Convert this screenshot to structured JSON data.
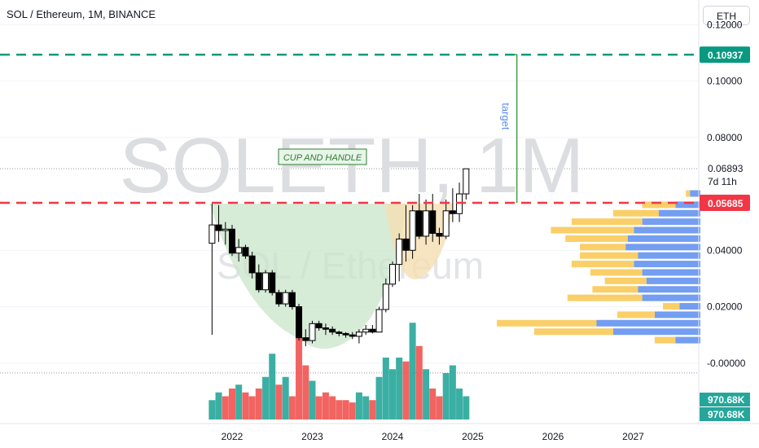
{
  "header": {
    "title": "SOL / Ethereum, 1M, BINANCE",
    "currency": "ETH"
  },
  "watermark": {
    "main": "SOLETH, 1M",
    "sub": "SOL / Ethereum"
  },
  "chart_data": {
    "type": "candlestick",
    "interval": "1M",
    "exchange": "BINANCE",
    "ylim": [
      -0.007,
      0.125
    ],
    "y_ticks": [
      "0.12000",
      "0.10000",
      "0.08000",
      "0.04000",
      "0.02000",
      "-0.00000"
    ],
    "x_ticks": [
      "2022",
      "2023",
      "2024",
      "2025",
      "2026",
      "2027"
    ],
    "price_labels": {
      "target_level": "0.10937",
      "support_level": "0.05685",
      "last_price": "0.06893",
      "countdown": "7d 11h",
      "volume_a": "970.68K",
      "volume_b": "970.68K"
    },
    "annotations": {
      "pattern": "CUP AND HANDLE",
      "target": "target"
    },
    "levels": {
      "target": 0.10937,
      "support": 0.05685,
      "last": 0.06893
    },
    "colors": {
      "up": "#26a69a",
      "down": "#ef5350",
      "target_line": "#089981",
      "support_line": "#f23645",
      "cup_fill": "#c8e6c9",
      "handle_fill": "#f5deb3",
      "vp_up": "#5b8def",
      "vp_down": "#f9c74f"
    },
    "candles": [
      {
        "t": 2021.75,
        "o": 0.0425,
        "h": 0.0565,
        "l": 0.01,
        "c": 0.049
      },
      {
        "t": 2021.833,
        "o": 0.049,
        "h": 0.056,
        "l": 0.043,
        "c": 0.047
      },
      {
        "t": 2021.917,
        "o": 0.047,
        "h": 0.05,
        "l": 0.042,
        "c": 0.0475
      },
      {
        "t": 2022.0,
        "o": 0.0475,
        "h": 0.049,
        "l": 0.038,
        "c": 0.039
      },
      {
        "t": 2022.083,
        "o": 0.039,
        "h": 0.044,
        "l": 0.036,
        "c": 0.041
      },
      {
        "t": 2022.167,
        "o": 0.041,
        "h": 0.042,
        "l": 0.037,
        "c": 0.038
      },
      {
        "t": 2022.25,
        "o": 0.038,
        "h": 0.0395,
        "l": 0.03,
        "c": 0.032
      },
      {
        "t": 2022.333,
        "o": 0.032,
        "h": 0.035,
        "l": 0.025,
        "c": 0.026
      },
      {
        "t": 2022.417,
        "o": 0.026,
        "h": 0.033,
        "l": 0.025,
        "c": 0.032
      },
      {
        "t": 2022.5,
        "o": 0.032,
        "h": 0.033,
        "l": 0.024,
        "c": 0.025
      },
      {
        "t": 2022.583,
        "o": 0.025,
        "h": 0.026,
        "l": 0.02,
        "c": 0.021
      },
      {
        "t": 2022.667,
        "o": 0.021,
        "h": 0.026,
        "l": 0.02,
        "c": 0.025
      },
      {
        "t": 2022.75,
        "o": 0.025,
        "h": 0.026,
        "l": 0.019,
        "c": 0.02
      },
      {
        "t": 2022.833,
        "o": 0.02,
        "h": 0.021,
        "l": 0.008,
        "c": 0.009
      },
      {
        "t": 2022.917,
        "o": 0.009,
        "h": 0.012,
        "l": 0.006,
        "c": 0.008
      },
      {
        "t": 2023.0,
        "o": 0.008,
        "h": 0.015,
        "l": 0.007,
        "c": 0.014
      },
      {
        "t": 2023.083,
        "o": 0.014,
        "h": 0.015,
        "l": 0.0115,
        "c": 0.0125
      },
      {
        "t": 2023.167,
        "o": 0.0125,
        "h": 0.014,
        "l": 0.01,
        "c": 0.012
      },
      {
        "t": 2023.25,
        "o": 0.012,
        "h": 0.013,
        "l": 0.01,
        "c": 0.011
      },
      {
        "t": 2023.333,
        "o": 0.011,
        "h": 0.0115,
        "l": 0.0095,
        "c": 0.0105
      },
      {
        "t": 2023.417,
        "o": 0.0105,
        "h": 0.011,
        "l": 0.009,
        "c": 0.01
      },
      {
        "t": 2023.5,
        "o": 0.01,
        "h": 0.011,
        "l": 0.0085,
        "c": 0.0095
      },
      {
        "t": 2023.583,
        "o": 0.0095,
        "h": 0.012,
        "l": 0.007,
        "c": 0.011
      },
      {
        "t": 2023.667,
        "o": 0.011,
        "h": 0.0135,
        "l": 0.01,
        "c": 0.012
      },
      {
        "t": 2023.75,
        "o": 0.012,
        "h": 0.0135,
        "l": 0.0105,
        "c": 0.011
      },
      {
        "t": 2023.833,
        "o": 0.011,
        "h": 0.02,
        "l": 0.011,
        "c": 0.019
      },
      {
        "t": 2023.917,
        "o": 0.019,
        "h": 0.03,
        "l": 0.018,
        "c": 0.028
      },
      {
        "t": 2024.0,
        "o": 0.028,
        "h": 0.036,
        "l": 0.027,
        "c": 0.035
      },
      {
        "t": 2024.083,
        "o": 0.035,
        "h": 0.046,
        "l": 0.029,
        "c": 0.044
      },
      {
        "t": 2024.167,
        "o": 0.044,
        "h": 0.056,
        "l": 0.036,
        "c": 0.04
      },
      {
        "t": 2024.25,
        "o": 0.04,
        "h": 0.056,
        "l": 0.037,
        "c": 0.054
      },
      {
        "t": 2024.333,
        "o": 0.054,
        "h": 0.06,
        "l": 0.044,
        "c": 0.045
      },
      {
        "t": 2024.417,
        "o": 0.045,
        "h": 0.058,
        "l": 0.042,
        "c": 0.054
      },
      {
        "t": 2024.5,
        "o": 0.054,
        "h": 0.06,
        "l": 0.043,
        "c": 0.046
      },
      {
        "t": 2024.583,
        "o": 0.046,
        "h": 0.048,
        "l": 0.042,
        "c": 0.045
      },
      {
        "t": 2024.667,
        "o": 0.045,
        "h": 0.058,
        "l": 0.044,
        "c": 0.054
      },
      {
        "t": 2024.75,
        "o": 0.054,
        "h": 0.062,
        "l": 0.05,
        "c": 0.053
      },
      {
        "t": 2024.833,
        "o": 0.053,
        "h": 0.064,
        "l": 0.05,
        "c": 0.06
      },
      {
        "t": 2024.917,
        "o": 0.06,
        "h": 0.0689,
        "l": 0.058,
        "c": 0.0689
      }
    ],
    "volume": [
      {
        "t": 2021.75,
        "v": 0.25,
        "up": true
      },
      {
        "t": 2021.833,
        "v": 0.35,
        "up": true
      },
      {
        "t": 2021.917,
        "v": 0.3,
        "up": false
      },
      {
        "t": 2022.0,
        "v": 0.4,
        "up": false
      },
      {
        "t": 2022.083,
        "v": 0.45,
        "up": true
      },
      {
        "t": 2022.167,
        "v": 0.35,
        "up": false
      },
      {
        "t": 2022.25,
        "v": 0.3,
        "up": false
      },
      {
        "t": 2022.333,
        "v": 0.4,
        "up": false
      },
      {
        "t": 2022.417,
        "v": 0.55,
        "up": true
      },
      {
        "t": 2022.5,
        "v": 0.85,
        "up": true
      },
      {
        "t": 2022.583,
        "v": 0.45,
        "up": false
      },
      {
        "t": 2022.667,
        "v": 0.55,
        "up": true
      },
      {
        "t": 2022.75,
        "v": 0.3,
        "up": false
      },
      {
        "t": 2022.833,
        "v": 1.2,
        "up": false
      },
      {
        "t": 2022.917,
        "v": 0.7,
        "up": false
      },
      {
        "t": 2023.0,
        "v": 0.5,
        "up": true
      },
      {
        "t": 2023.083,
        "v": 0.3,
        "up": false
      },
      {
        "t": 2023.167,
        "v": 0.35,
        "up": false
      },
      {
        "t": 2023.25,
        "v": 0.3,
        "up": false
      },
      {
        "t": 2023.333,
        "v": 0.25,
        "up": false
      },
      {
        "t": 2023.417,
        "v": 0.25,
        "up": false
      },
      {
        "t": 2023.5,
        "v": 0.22,
        "up": false
      },
      {
        "t": 2023.583,
        "v": 0.35,
        "up": true
      },
      {
        "t": 2023.667,
        "v": 0.3,
        "up": true
      },
      {
        "t": 2023.75,
        "v": 0.25,
        "up": false
      },
      {
        "t": 2023.833,
        "v": 0.55,
        "up": true
      },
      {
        "t": 2023.917,
        "v": 0.8,
        "up": true
      },
      {
        "t": 2024.0,
        "v": 0.65,
        "up": true
      },
      {
        "t": 2024.083,
        "v": 0.8,
        "up": true
      },
      {
        "t": 2024.167,
        "v": 0.75,
        "up": false
      },
      {
        "t": 2024.25,
        "v": 1.25,
        "up": true
      },
      {
        "t": 2024.333,
        "v": 0.95,
        "up": false
      },
      {
        "t": 2024.417,
        "v": 0.65,
        "up": true
      },
      {
        "t": 2024.5,
        "v": 0.4,
        "up": false
      },
      {
        "t": 2024.583,
        "v": 0.3,
        "up": false
      },
      {
        "t": 2024.667,
        "v": 0.6,
        "up": true
      },
      {
        "t": 2024.75,
        "v": 0.7,
        "up": true
      },
      {
        "t": 2024.833,
        "v": 0.4,
        "up": true
      },
      {
        "t": 2024.917,
        "v": 0.3,
        "up": true
      }
    ],
    "volume_profile": [
      {
        "y": 0.06,
        "buy": 0.05,
        "sell": 0.02
      },
      {
        "y": 0.056,
        "buy": 0.12,
        "sell": 0.16
      },
      {
        "y": 0.053,
        "buy": 0.2,
        "sell": 0.22
      },
      {
        "y": 0.05,
        "buy": 0.28,
        "sell": 0.34
      },
      {
        "y": 0.047,
        "buy": 0.32,
        "sell": 0.4
      },
      {
        "y": 0.044,
        "buy": 0.35,
        "sell": 0.3
      },
      {
        "y": 0.041,
        "buy": 0.36,
        "sell": 0.22
      },
      {
        "y": 0.038,
        "buy": 0.3,
        "sell": 0.28
      },
      {
        "y": 0.035,
        "buy": 0.32,
        "sell": 0.3
      },
      {
        "y": 0.032,
        "buy": 0.28,
        "sell": 0.25
      },
      {
        "y": 0.029,
        "buy": 0.26,
        "sell": 0.2
      },
      {
        "y": 0.026,
        "buy": 0.3,
        "sell": 0.22
      },
      {
        "y": 0.023,
        "buy": 0.28,
        "sell": 0.36
      },
      {
        "y": 0.02,
        "buy": 0.1,
        "sell": 0.08
      },
      {
        "y": 0.017,
        "buy": 0.22,
        "sell": 0.18
      },
      {
        "y": 0.014,
        "buy": 0.5,
        "sell": 0.48
      },
      {
        "y": 0.011,
        "buy": 0.42,
        "sell": 0.38
      },
      {
        "y": 0.008,
        "buy": 0.12,
        "sell": 0.1
      }
    ]
  }
}
